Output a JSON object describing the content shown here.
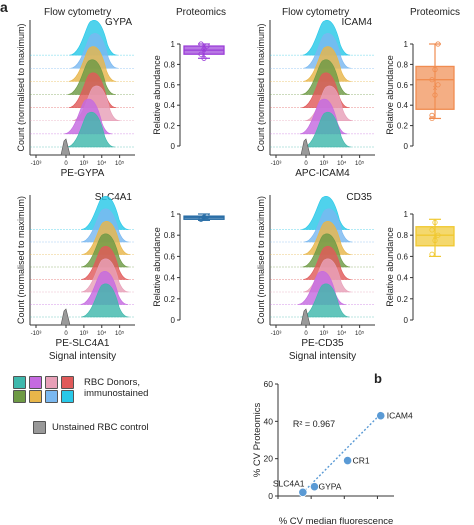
{
  "panel_labels": {
    "a": "a",
    "b": "b"
  },
  "column_headers": {
    "flow_cytometry": "Flow cytometry",
    "proteomics": "Proteomics"
  },
  "flow_axis_ylabel": "Count (normalised to maximum)",
  "proteomics_ylabel": "Relative abundance",
  "flow_tick_labels": [
    "-10³",
    "0",
    "10³",
    "10⁴",
    "10⁵"
  ],
  "signal_intensity": "Signal intensity",
  "legend": {
    "donor_colors": [
      "#3fb8ac",
      "#c56ae0",
      "#e8a0b8",
      "#e05a5a",
      "#6e9a45",
      "#e8b64a",
      "#7ab8f0",
      "#28c8e8"
    ],
    "control_color": "#999999",
    "donors_label": "RBC Donors,\nimmunostained",
    "control_label": "Unstained RBC control"
  },
  "chart_data": [
    {
      "type": "histogram",
      "panel": "GYPA-flow",
      "protein": "GYPA",
      "xlabel": "PE-GYPA",
      "peak_log10_donors": [
        3.5,
        3.35,
        3.8,
        3.6,
        3.55,
        3.6,
        3.7,
        3.65
      ],
      "peak_log10_control": 0
    },
    {
      "type": "box",
      "panel": "GYPA-proteomics",
      "ylabel": "Relative abundance",
      "ylim": [
        0,
        1
      ],
      "yticks": [
        0,
        0.2,
        0.4,
        0.6,
        0.8,
        1
      ],
      "color": "#9b3ed8",
      "min": 0.86,
      "q1": 0.9,
      "median": 0.94,
      "q3": 0.98,
      "max": 1.0,
      "points": [
        0.9,
        0.95,
        0.98,
        1.0,
        0.86
      ]
    },
    {
      "type": "histogram",
      "panel": "ICAM4-flow",
      "protein": "ICAM4",
      "xlabel": "APC-ICAM4",
      "peak_log10_donors": [
        3.3,
        3.1,
        3.4,
        3.2,
        3.2,
        3.3,
        3.3,
        3.25
      ],
      "peak_log10_control": 0
    },
    {
      "type": "box",
      "panel": "ICAM4-proteomics",
      "ylabel": "Relative abundance",
      "ylim": [
        0,
        1
      ],
      "yticks": [
        0,
        0.2,
        0.4,
        0.6,
        0.8,
        1
      ],
      "color": "#f08c50",
      "min": 0.27,
      "q1": 0.36,
      "median": 0.65,
      "q3": 0.78,
      "max": 1.0,
      "points": [
        0.3,
        0.5,
        0.6,
        0.65,
        0.75,
        1.0,
        0.27
      ]
    },
    {
      "type": "histogram",
      "panel": "SLC4A1-flow",
      "protein": "SLC4A1",
      "xlabel": "PE-SLC4A1",
      "peak_log10_donors": [
        4.3,
        4.25,
        4.3,
        4.3,
        4.3,
        4.35,
        4.3,
        4.3
      ],
      "peak_log10_control": 0
    },
    {
      "type": "box",
      "panel": "SLC4A1-proteomics",
      "ylabel": "Relative abundance",
      "ylim": [
        0,
        1
      ],
      "yticks": [
        0,
        0.2,
        0.4,
        0.6,
        0.8,
        1
      ],
      "color": "#2a6ea6",
      "min": 0.94,
      "q1": 0.95,
      "median": 0.97,
      "q3": 0.98,
      "max": 1.0,
      "points": [
        0.95,
        0.97,
        0.98
      ]
    },
    {
      "type": "histogram",
      "panel": "CD35-flow",
      "protein": "CD35",
      "xlabel": "PE-CD35",
      "peak_log10_donors": [
        3.2,
        3.0,
        3.3,
        3.3,
        3.25,
        3.3,
        3.35,
        3.2
      ],
      "peak_log10_control": 0
    },
    {
      "type": "box",
      "panel": "CD35-proteomics",
      "ylabel": "Relative abundance",
      "ylim": [
        0,
        1
      ],
      "yticks": [
        0,
        0.2,
        0.4,
        0.6,
        0.8,
        1
      ],
      "color": "#f0c830",
      "min": 0.6,
      "q1": 0.7,
      "median": 0.8,
      "q3": 0.88,
      "max": 0.95,
      "points": [
        0.62,
        0.75,
        0.8,
        0.85,
        0.92
      ]
    },
    {
      "type": "scatter",
      "panel": "b",
      "xlabel": "% CV median fluorescence",
      "ylabel": "% CV Proteomics",
      "xlim": [
        0,
        70
      ],
      "ylim": [
        0,
        60
      ],
      "xticks": [
        0,
        20,
        40,
        60
      ],
      "yticks": [
        0,
        20,
        40,
        60
      ],
      "annotation": "R² = 0.967",
      "points": [
        {
          "label": "SLC4A1",
          "x": 15,
          "y": 2
        },
        {
          "label": "GYPA",
          "x": 22,
          "y": 5
        },
        {
          "label": "CR1",
          "x": 42,
          "y": 19
        },
        {
          "label": "ICAM4",
          "x": 62,
          "y": 43
        }
      ],
      "trend_line": {
        "x": [
          13,
          62
        ],
        "y": [
          0,
          44
        ]
      },
      "point_color": "#5a9ad5"
    }
  ]
}
